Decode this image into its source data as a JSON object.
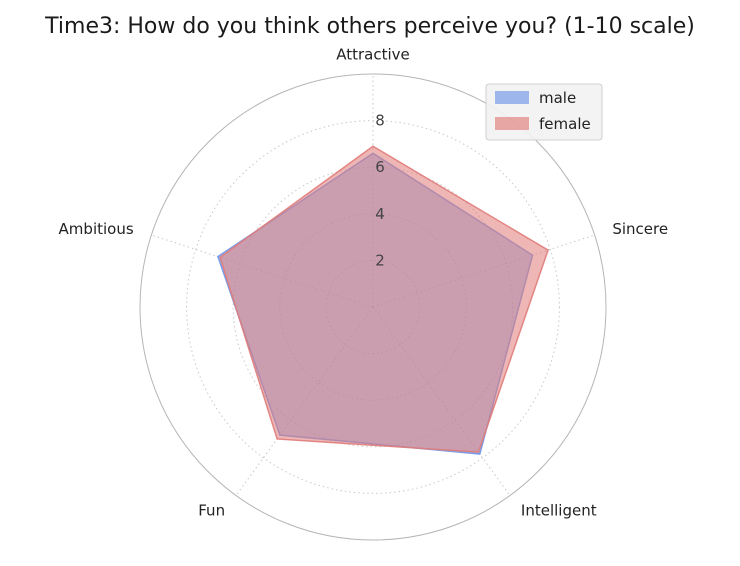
{
  "chart_data": {
    "type": "radar",
    "title": "Time3: How do you think others perceive you? (1-10 scale)",
    "axes": [
      "Attractive",
      "Sincere",
      "Intelligent",
      "Fun",
      "Ambitious"
    ],
    "rlim": [
      0,
      10
    ],
    "rticks": [
      2,
      4,
      6,
      8
    ],
    "grid": true,
    "legend_position": "top-right",
    "series": [
      {
        "name": "male",
        "values": [
          6.6,
          7.2,
          7.8,
          6.8,
          7.0
        ],
        "color": "#6f95e8"
      },
      {
        "name": "female",
        "values": [
          6.9,
          7.9,
          7.7,
          7.0,
          6.9
        ],
        "color": "#e07b79"
      }
    ]
  }
}
